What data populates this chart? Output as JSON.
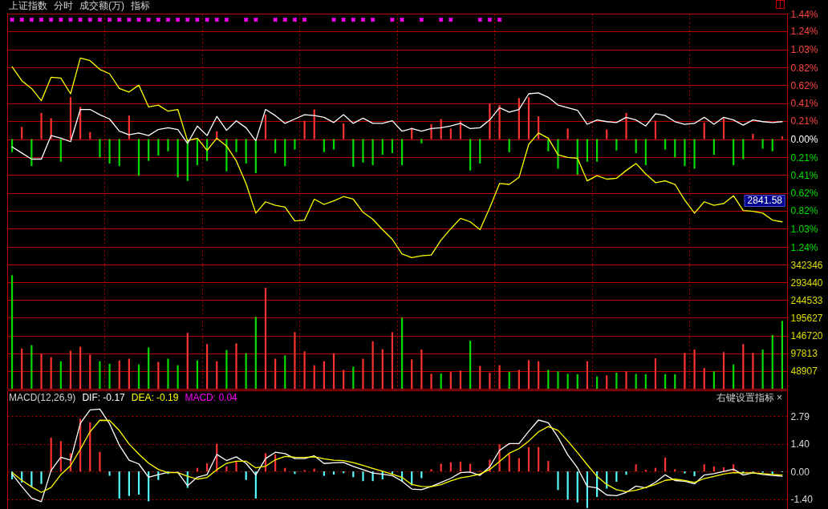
{
  "chart_data": [
    {
      "type": "line",
      "title": "上证指数",
      "annotations": [
        "分时",
        "成交额(万)",
        "指标",
        "2841.58"
      ],
      "categories": [
        null,
        null,
        null,
        null,
        null,
        null,
        null,
        null,
        null,
        null,
        null,
        null,
        null,
        null,
        null,
        null,
        null,
        null,
        null,
        null,
        null,
        null,
        null,
        null,
        null,
        null,
        null,
        null,
        null,
        null,
        null,
        null,
        null,
        null,
        null,
        null,
        null,
        null,
        null,
        null,
        null,
        null,
        null,
        null,
        null,
        null,
        null,
        null,
        null,
        null,
        null,
        null,
        null,
        null,
        null,
        null,
        null,
        null,
        null,
        null,
        null,
        null,
        null,
        null,
        null,
        null,
        null,
        null,
        null,
        null,
        null,
        null,
        null,
        null,
        null,
        null,
        null,
        null,
        null,
        null
      ],
      "series": [
        {
          "type": "bar",
          "values": [
            -0.15,
            0.14,
            -0.31,
            0.3,
            0.24,
            -0.26,
            0.48,
            0.37,
            0.08,
            -0.21,
            -0.28,
            -0.31,
            0.27,
            -0.42,
            -0.25,
            -0.19,
            -0.14,
            -0.44,
            -0.48,
            -0.3,
            -0.25,
            0.09,
            -0.37,
            -0.15,
            -0.28,
            -0.39,
            0.28,
            -0.16,
            -0.31,
            -0.12,
            0.21,
            0.34,
            -0.15,
            -0.12,
            0.18,
            -0.32,
            -0.27,
            -0.3,
            -0.18,
            -0.16,
            -0.3,
            0.13,
            -0.05,
            0.17,
            0.23,
            0.12,
            0.21,
            -0.36,
            -0.28,
            0.41,
            0.39,
            -0.15,
            0.47,
            0.48,
            0.26,
            -0.14,
            -0.34,
            0.12,
            -0.41,
            -0.26,
            -0.26,
            0.11,
            -0.13,
            0.3,
            -0.16,
            -0.3,
            0.21,
            -0.12,
            -0.21,
            -0.31,
            -0.34,
            0.19,
            -0.18,
            0.24,
            -0.3,
            -0.23,
            0.06,
            -0.11,
            -0.14,
            0.03
          ],
          "colors": [
            "#00dc00",
            "#ff3232",
            "#00dc00",
            "#ff3232",
            "#ff3232",
            "#00dc00",
            "#ff3232",
            "#ff3232",
            "#ff3232",
            "#00dc00",
            "#00dc00",
            "#00dc00",
            "#ff3232",
            "#00dc00",
            "#00dc00",
            "#00dc00",
            "#00dc00",
            "#00dc00",
            "#00dc00",
            "#00dc00",
            "#00dc00",
            "#ff3232",
            "#00dc00",
            "#00dc00",
            "#00dc00",
            "#00dc00",
            "#ff3232",
            "#00dc00",
            "#00dc00",
            "#00dc00",
            "#ff3232",
            "#ff3232",
            "#00dc00",
            "#00dc00",
            "#ff3232",
            "#00dc00",
            "#00dc00",
            "#00dc00",
            "#00dc00",
            "#00dc00",
            "#00dc00",
            "#ff3232",
            "#00dc00",
            "#ff3232",
            "#ff3232",
            "#ff3232",
            "#ff3232",
            "#00dc00",
            "#00dc00",
            "#ff3232",
            "#ff3232",
            "#00dc00",
            "#ff3232",
            "#ff3232",
            "#ff3232",
            "#00dc00",
            "#00dc00",
            "#ff3232",
            "#00dc00",
            "#00dc00",
            "#00dc00",
            "#ff3232",
            "#00dc00",
            "#ff3232",
            "#00dc00",
            "#00dc00",
            "#ff3232",
            "#00dc00",
            "#00dc00",
            "#00dc00",
            "#00dc00",
            "#ff3232",
            "#00dc00",
            "#ff3232",
            "#00dc00",
            "#00dc00",
            "#ff3232",
            "#00dc00",
            "#00dc00",
            "#ff3232"
          ]
        },
        {
          "color": "#ffff00",
          "values": [
            0.83,
            0.67,
            0.58,
            0.44,
            0.71,
            0.7,
            0.52,
            0.93,
            0.9,
            0.8,
            0.75,
            0.58,
            0.54,
            0.62,
            0.37,
            0.39,
            0.32,
            0.34,
            -0.02,
            0.01,
            -0.13,
            0.01,
            -0.08,
            -0.25,
            -0.51,
            -0.85,
            -0.72,
            -0.76,
            -0.78,
            -0.94,
            -0.93,
            -0.69,
            -0.75,
            -0.71,
            -0.66,
            -0.69,
            -0.84,
            -0.92,
            -1.04,
            -1.15,
            -1.32,
            -1.36,
            -1.34,
            -1.33,
            -1.16,
            -1.03,
            -0.91,
            -0.95,
            -1.04,
            -0.79,
            -0.51,
            -0.52,
            -0.44,
            -0.06,
            0.07,
            0.01,
            -0.18,
            -0.21,
            -0.22,
            -0.48,
            -0.42,
            -0.46,
            -0.45,
            -0.36,
            -0.28,
            -0.4,
            -0.5,
            -0.48,
            -0.52,
            -0.7,
            -0.85,
            -0.72,
            -0.76,
            -0.74,
            -0.65,
            -0.82,
            -0.83,
            -0.85,
            -0.93,
            -0.95
          ]
        },
        {
          "color": "#ffffff",
          "values": [
            -0.09,
            -0.16,
            -0.23,
            -0.23,
            0.04,
            0.01,
            -0.03,
            0.34,
            0.34,
            0.28,
            0.23,
            0.09,
            0.05,
            0.07,
            0.04,
            0.11,
            0.13,
            0.11,
            -0.05,
            0.15,
            0.04,
            0.26,
            0.1,
            0.21,
            0.13,
            -0.02,
            0.34,
            0.27,
            0.18,
            0.23,
            0.28,
            0.27,
            0.25,
            0.19,
            0.28,
            0.18,
            0.24,
            0.18,
            0.18,
            0.21,
            0.09,
            0.12,
            0.09,
            0.12,
            0.13,
            0.15,
            0.18,
            0.12,
            0.13,
            0.22,
            0.36,
            0.31,
            0.34,
            0.52,
            0.53,
            0.48,
            0.39,
            0.36,
            0.33,
            0.17,
            0.22,
            0.2,
            0.19,
            0.25,
            0.22,
            0.15,
            0.29,
            0.27,
            0.2,
            0.17,
            0.18,
            0.25,
            0.17,
            0.25,
            0.22,
            0.16,
            0.22,
            0.2,
            0.19,
            0.2
          ]
        },
        {
          "type": "scatter",
          "color": "#ff00ff",
          "marker": "cross",
          "values": [
            1.37,
            1.37,
            1.37,
            1.37,
            1.37,
            1.37,
            1.37,
            1.37,
            1.37,
            1.37,
            1.37,
            1.37,
            1.37,
            1.37,
            1.37,
            1.37,
            1.37,
            1.37,
            1.37,
            1.37,
            1.37,
            1.37,
            1.37,
            null,
            1.37,
            1.37,
            null,
            1.37,
            1.37,
            1.37,
            1.37,
            null,
            null,
            1.37,
            1.37,
            1.37,
            1.37,
            1.37,
            null,
            1.37,
            1.37,
            null,
            1.37,
            null,
            1.37,
            1.37,
            null,
            null,
            1.37,
            1.37,
            1.37,
            null,
            null,
            null,
            null,
            null,
            null,
            null,
            null,
            null,
            null,
            null,
            null,
            null,
            null,
            null,
            null,
            null,
            null,
            null,
            null,
            null,
            null,
            null,
            null,
            null,
            null,
            null,
            null,
            null
          ]
        }
      ],
      "ylim": [
        -1.44,
        1.44
      ],
      "yticks": [
        {
          "value": 1.44,
          "label": "1.44%"
        },
        {
          "value": 1.24,
          "label": "1.24%"
        },
        {
          "value": 1.03,
          "label": "1.03%"
        },
        {
          "value": 0.82,
          "label": "0.82%"
        },
        {
          "value": 0.62,
          "label": "0.62%"
        },
        {
          "value": 0.41,
          "label": "0.41%"
        },
        {
          "value": 0.21,
          "label": "0.21%"
        },
        {
          "value": 0,
          "label": "0.00%"
        },
        {
          "value": -0.21,
          "label": "0.21%"
        },
        {
          "value": -0.41,
          "label": "0.41%"
        },
        {
          "value": -0.62,
          "label": "0.62%"
        },
        {
          "value": -0.82,
          "label": "0.82%"
        },
        {
          "value": -1.03,
          "label": "1.03%"
        },
        {
          "value": -1.24,
          "label": "1.24%"
        }
      ],
      "grid": true,
      "tick_labels": "y"
    },
    {
      "type": "bar",
      "categories": [
        null,
        null,
        null,
        null,
        null,
        null,
        null,
        null,
        null,
        null,
        null,
        null,
        null,
        null,
        null,
        null,
        null,
        null,
        null,
        null,
        null,
        null,
        null,
        null,
        null,
        null,
        null,
        null,
        null,
        null,
        null,
        null,
        null,
        null,
        null,
        null,
        null,
        null,
        null,
        null,
        null,
        null,
        null,
        null,
        null,
        null,
        null,
        null,
        null,
        null,
        null,
        null,
        null,
        null,
        null,
        null,
        null,
        null,
        null,
        null,
        null,
        null,
        null,
        null,
        null,
        null,
        null,
        null,
        null,
        null,
        null,
        null,
        null,
        null,
        null,
        null,
        null,
        null,
        null,
        null
      ],
      "values": [
        313000,
        111000,
        120000,
        97000,
        87000,
        76000,
        105000,
        116000,
        94000,
        76000,
        69000,
        78000,
        83000,
        67000,
        114000,
        74000,
        83000,
        65000,
        154000,
        78000,
        123000,
        76000,
        107000,
        125000,
        98000,
        198000,
        278000,
        83000,
        92000,
        156000,
        103000,
        65000,
        76000,
        98000,
        52000,
        61000,
        83000,
        131000,
        109000,
        156000,
        196000,
        81000,
        108000,
        41000,
        42000,
        46000,
        50000,
        132000,
        63000,
        44000,
        65000,
        47000,
        52000,
        79000,
        76000,
        52000,
        48000,
        41000,
        40000,
        76000,
        34000,
        37000,
        44000,
        48000,
        41000,
        40000,
        84000,
        40000,
        40000,
        99000,
        108000,
        57000,
        48000,
        101000,
        67000,
        123000,
        99000,
        108000,
        148000,
        187000
      ],
      "colors": [
        "#00dc00",
        "#ff3232",
        "#00dc00",
        "#ff3232",
        "#ff3232",
        "#00dc00",
        "#ff3232",
        "#ff3232",
        "#ff3232",
        "#00dc00",
        "#00dc00",
        "#ff3232",
        "#ff3232",
        "#00dc00",
        "#00dc00",
        "#ff3232",
        "#00dc00",
        "#00dc00",
        "#ff3232",
        "#00dc00",
        "#ff3232",
        "#ff3232",
        "#00dc00",
        "#ff3232",
        "#00dc00",
        "#00dc00",
        "#ff3232",
        "#ff3232",
        "#00dc00",
        "#ff3232",
        "#ff3232",
        "#ff3232",
        "#ff3232",
        "#ff3232",
        "#ff3232",
        "#00dc00",
        "#ff3232",
        "#ff3232",
        "#ff3232",
        "#ff3232",
        "#00dc00",
        "#ff3232",
        "#ff3232",
        "#ff3232",
        "#00dc00",
        "#ff3232",
        "#ff3232",
        "#00dc00",
        "#ff3232",
        "#ff3232",
        "#ff3232",
        "#00dc00",
        "#ff3232",
        "#ff3232",
        "#ff3232",
        "#00dc00",
        "#00dc00",
        "#00dc00",
        "#00dc00",
        "#ff3232",
        "#00dc00",
        "#ff3232",
        "#00dc00",
        "#ff3232",
        "#00dc00",
        "#00dc00",
        "#ff3232",
        "#00dc00",
        "#00dc00",
        "#ff3232",
        "#ff3232",
        "#ff3232",
        "#00dc00",
        "#ff3232",
        "#00dc00",
        "#ff3232",
        "#ff3232",
        "#00dc00",
        "#00dc00",
        "#00dc00"
      ],
      "ylim": [
        0,
        342346
      ],
      "yticks": [
        48907,
        97813,
        146720,
        195627,
        244533,
        293440,
        342346
      ],
      "grid": true,
      "tick_labels": "y"
    },
    {
      "type": "line",
      "title": "MACD(12,26,9)",
      "annotations": [
        "MACD: 0.04",
        "右键设置指标 ×"
      ],
      "categories": [
        null,
        null,
        null,
        null,
        null,
        null,
        null,
        null,
        null,
        null,
        null,
        null,
        null,
        null,
        null,
        null,
        null,
        null,
        null,
        null,
        null,
        null,
        null,
        null,
        null,
        null,
        null,
        null,
        null,
        null,
        null,
        null,
        null,
        null,
        null,
        null,
        null,
        null,
        null,
        null,
        null,
        null,
        null,
        null,
        null,
        null,
        null,
        null,
        null,
        null,
        null,
        null,
        null,
        null,
        null,
        null,
        null,
        null,
        null,
        null,
        null,
        null,
        null,
        null,
        null,
        null,
        null,
        null,
        null,
        null,
        null,
        null,
        null,
        null,
        null,
        null,
        null,
        null,
        null,
        null
      ],
      "series": [
        {
          "name": "DIF: -0.17",
          "color": "#ffffff",
          "values": [
            -0.13,
            -0.76,
            -1.35,
            -1.53,
            0.05,
            0.72,
            0.57,
            2.43,
            3.11,
            3.15,
            2.41,
            1.33,
            0.57,
            0.38,
            -0.29,
            -0.16,
            -0.05,
            -0.05,
            -0.72,
            -0.29,
            -0.16,
            0.86,
            0.55,
            0.74,
            0.41,
            -0.18,
            0.65,
            0.97,
            0.9,
            0.65,
            0.65,
            0.79,
            0.4,
            0.44,
            0.46,
            0.25,
            0.09,
            -0.08,
            -0.14,
            -0.21,
            -0.49,
            -0.89,
            -0.92,
            -0.76,
            -0.56,
            -0.35,
            -0.06,
            -0.03,
            -0.2,
            0.24,
            1.06,
            1.41,
            1.41,
            2.03,
            2.6,
            2.46,
            1.73,
            0.84,
            0.18,
            -0.76,
            -0.83,
            -1.19,
            -1.23,
            -1.06,
            -0.74,
            -0.83,
            -0.55,
            -0.17,
            -0.46,
            -0.5,
            -0.63,
            -0.18,
            -0.11,
            0.0,
            0.11,
            -0.18,
            -0.07,
            -0.15,
            -0.2,
            -0.24
          ]
        },
        {
          "name": "DEA: -0.19",
          "color": "#ffff00",
          "values": [
            -0.06,
            -0.45,
            -0.78,
            -1.06,
            -0.81,
            -0.16,
            0.29,
            1.12,
            2.01,
            2.59,
            2.58,
            2.07,
            1.39,
            0.88,
            0.42,
            0.1,
            -0.06,
            -0.06,
            -0.24,
            -0.39,
            -0.31,
            0.09,
            0.41,
            0.52,
            0.52,
            0.18,
            0.26,
            0.59,
            0.76,
            0.72,
            0.71,
            0.74,
            0.64,
            0.57,
            0.55,
            0.45,
            0.3,
            0.15,
            0.01,
            -0.14,
            -0.3,
            -0.66,
            -0.76,
            -0.77,
            -0.67,
            -0.48,
            -0.32,
            -0.24,
            -0.13,
            0.1,
            0.5,
            0.92,
            1.15,
            1.54,
            2.0,
            2.27,
            2.08,
            1.54,
            0.95,
            0.34,
            -0.25,
            -0.66,
            -0.92,
            -1.02,
            -0.95,
            -0.81,
            -0.66,
            -0.45,
            -0.39,
            -0.46,
            -0.56,
            -0.36,
            -0.25,
            -0.13,
            -0.06,
            -0.07,
            -0.07,
            -0.11,
            -0.15,
            -0.18
          ]
        },
        {
          "type": "bar",
          "values": [
            -0.4,
            -0.56,
            -0.76,
            -0.63,
            1.71,
            1.53,
            0.92,
            2.66,
            2.48,
            0.99,
            -0.22,
            -1.37,
            -1.24,
            -1.17,
            -1.51,
            -0.43,
            -0.13,
            -0.02,
            -0.83,
            0.18,
            0.41,
            1.4,
            0.25,
            0.52,
            -0.43,
            -1.37,
            0.92,
            0.86,
            0.18,
            -0.13,
            0.07,
            0.14,
            -0.22,
            -0.16,
            -0.09,
            -0.29,
            -0.49,
            -0.49,
            -0.4,
            -0.13,
            -0.52,
            -0.7,
            -0.34,
            0.11,
            0.39,
            0.46,
            0.5,
            0.39,
            0.04,
            0.6,
            1.37,
            0.88,
            0.67,
            1.23,
            1.23,
            0.53,
            -0.94,
            -1.43,
            -1.57,
            -1.85,
            -1.29,
            -0.87,
            -0.52,
            -0.17,
            0.36,
            0.08,
            0.18,
            0.7,
            0.11,
            -0.1,
            -0.24,
            0.36,
            0.25,
            0.21,
            0.36,
            -0.1,
            -0.03,
            -0.06,
            -0.14,
            -0.03
          ],
          "colors": [
            "#54fcfc",
            "#54fcfc",
            "#54fcfc",
            "#54fcfc",
            "#ff3232",
            "#ff3232",
            "#ff3232",
            "#ff3232",
            "#ff3232",
            "#ff3232",
            "#54fcfc",
            "#54fcfc",
            "#54fcfc",
            "#54fcfc",
            "#54fcfc",
            "#54fcfc",
            "#54fcfc",
            "#54fcfc",
            "#54fcfc",
            "#ff3232",
            "#ff3232",
            "#ff3232",
            "#ff3232",
            "#ff3232",
            "#54fcfc",
            "#54fcfc",
            "#ff3232",
            "#ff3232",
            "#ff3232",
            "#54fcfc",
            "#ff3232",
            "#ff3232",
            "#54fcfc",
            "#54fcfc",
            "#54fcfc",
            "#54fcfc",
            "#54fcfc",
            "#54fcfc",
            "#54fcfc",
            "#54fcfc",
            "#54fcfc",
            "#54fcfc",
            "#54fcfc",
            "#ff3232",
            "#ff3232",
            "#ff3232",
            "#ff3232",
            "#ff3232",
            "#ff3232",
            "#ff3232",
            "#ff3232",
            "#ff3232",
            "#ff3232",
            "#ff3232",
            "#ff3232",
            "#ff3232",
            "#54fcfc",
            "#54fcfc",
            "#54fcfc",
            "#54fcfc",
            "#54fcfc",
            "#54fcfc",
            "#54fcfc",
            "#54fcfc",
            "#ff3232",
            "#ff3232",
            "#ff3232",
            "#ff3232",
            "#ff3232",
            "#54fcfc",
            "#54fcfc",
            "#ff3232",
            "#ff3232",
            "#ff3232",
            "#ff3232",
            "#54fcfc",
            "#54fcfc",
            "#54fcfc",
            "#54fcfc",
            "#54fcfc"
          ]
        }
      ],
      "ylim": [
        -1.9,
        4.1
      ],
      "yticks": [
        2.79,
        {
          "value": 1.4,
          "label": "1.40"
        },
        {
          "value": 0,
          "label": "0.00"
        },
        {
          "value": -1.4,
          "label": "-1.40"
        }
      ],
      "grid": "y",
      "legend": "top left",
      "tick_labels": "y"
    }
  ]
}
